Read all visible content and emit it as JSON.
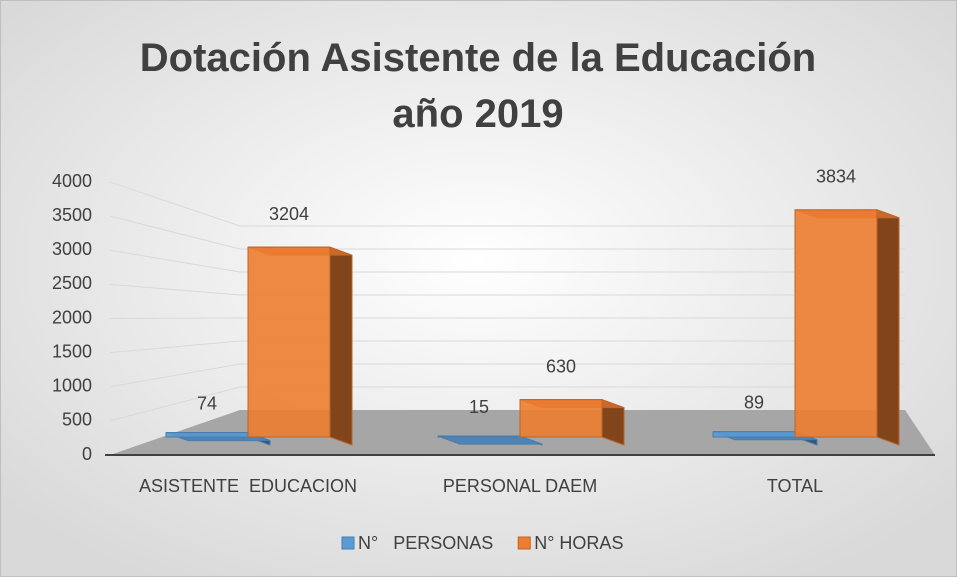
{
  "chart_data": {
    "type": "bar3d",
    "title": "Dotación Asistente de la Educación año 2019",
    "categories": [
      "ASISTENTE  EDUCACION",
      "PERSONAL DAEM",
      "TOTAL"
    ],
    "series": [
      {
        "name": "N°   PERSONAS",
        "color": "#5b9bd5",
        "values": [
          74,
          15,
          89
        ]
      },
      {
        "name": "N° HORAS",
        "color": "#ed7d31",
        "values": [
          3204,
          630,
          3834
        ]
      }
    ],
    "ylim": [
      0,
      4000
    ],
    "yticks": [
      0,
      500,
      1000,
      1500,
      2000,
      2500,
      3000,
      3500,
      4000
    ],
    "grid": true,
    "legend": "bottom"
  }
}
